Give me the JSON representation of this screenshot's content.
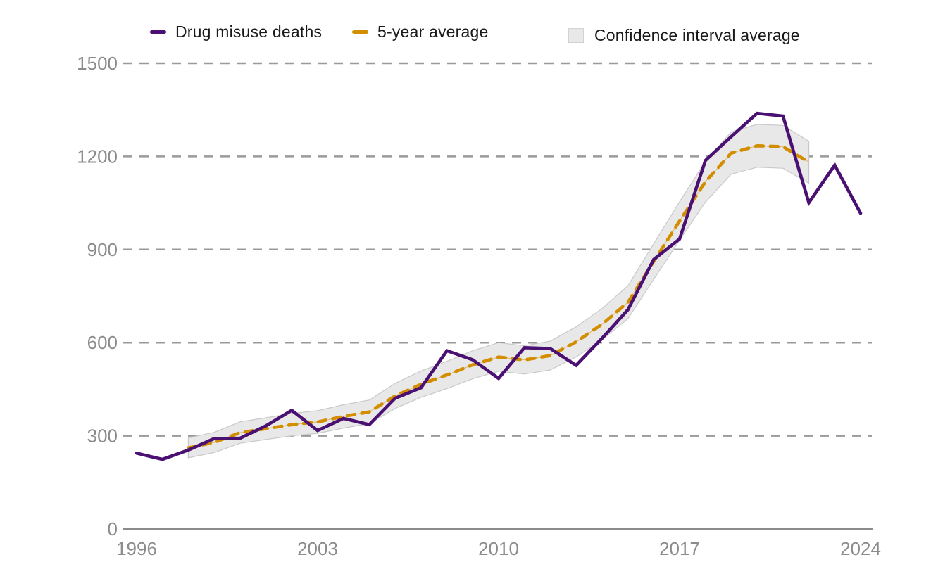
{
  "legend": {
    "items": [
      {
        "label": "Drug misuse deaths",
        "swatch": "line-dash",
        "color": "#4a1173"
      },
      {
        "label": "5-year average",
        "swatch": "line-dash",
        "color": "#d38e00"
      },
      {
        "label": "Confidence interval average",
        "swatch": "box",
        "color": "#e8e8e8"
      }
    ]
  },
  "chart_data": {
    "type": "line",
    "title": "",
    "xlabel": "",
    "ylabel": "",
    "x": [
      1996,
      1997,
      1998,
      1999,
      2000,
      2001,
      2002,
      2003,
      2004,
      2005,
      2006,
      2007,
      2008,
      2009,
      2010,
      2011,
      2012,
      2013,
      2014,
      2015,
      2016,
      2017,
      2018,
      2019,
      2020,
      2021,
      2022,
      2023,
      2024
    ],
    "series": [
      {
        "name": "Drug misuse deaths",
        "color": "#4a1173",
        "line_style": "solid",
        "x_start": 1996,
        "values": [
          244,
          224,
          254,
          291,
          292,
          332,
          382,
          317,
          356,
          336,
          421,
          455,
          574,
          545,
          485,
          584,
          581,
          527,
          614,
          706,
          868,
          934,
          1187,
          1264,
          1339,
          1330,
          1051,
          1172,
          1017
        ]
      },
      {
        "name": "5-year average",
        "color": "#d38e00",
        "line_style": "dashed",
        "x_start": 1998,
        "values": [
          261,
          278.6,
          310.2,
          322.8,
          335.8,
          344.6,
          362.4,
          377,
          428.4,
          466.2,
          496,
          528.6,
          553.8,
          544.4,
          558.2,
          602.4,
          659.2,
          729.8,
          861.8,
          991.8,
          1118.4,
          1210.8,
          1234.2,
          1231.2,
          1181.8
        ]
      }
    ],
    "band": {
      "name": "Confidence interval average",
      "x_start": 1998,
      "fill": "#e8e8e8",
      "edge": "#c9c9c9",
      "center_line": "#dfbd7a",
      "lower": [
        229,
        246,
        276,
        288,
        300,
        308,
        325,
        339,
        388,
        424,
        452,
        484,
        508,
        499,
        512,
        554,
        609,
        677,
        804,
        930,
        1053,
        1143,
        1165,
        1162,
        1114
      ],
      "upper": [
        293,
        311,
        345,
        358,
        372,
        381,
        400,
        415,
        469,
        509,
        540,
        574,
        600,
        590,
        605,
        651,
        710,
        783,
        919,
        1054,
        1184,
        1279,
        1303,
        1300,
        1249
      ]
    },
    "xticks": [
      1996,
      2003,
      2010,
      2017,
      2024
    ],
    "yticks": [
      0,
      300,
      600,
      900,
      1200,
      1500
    ],
    "xlim": [
      1996,
      2024
    ],
    "ylim": [
      0,
      1500
    ],
    "grid": "horizontal-dashed",
    "legend_position": "top"
  },
  "colors": {
    "grid": "#9a9a9a",
    "axis": "#8b8b8b",
    "tick_label": "#8b8b8b",
    "legend_text": "#1a1a1a",
    "background": "#ffffff"
  }
}
